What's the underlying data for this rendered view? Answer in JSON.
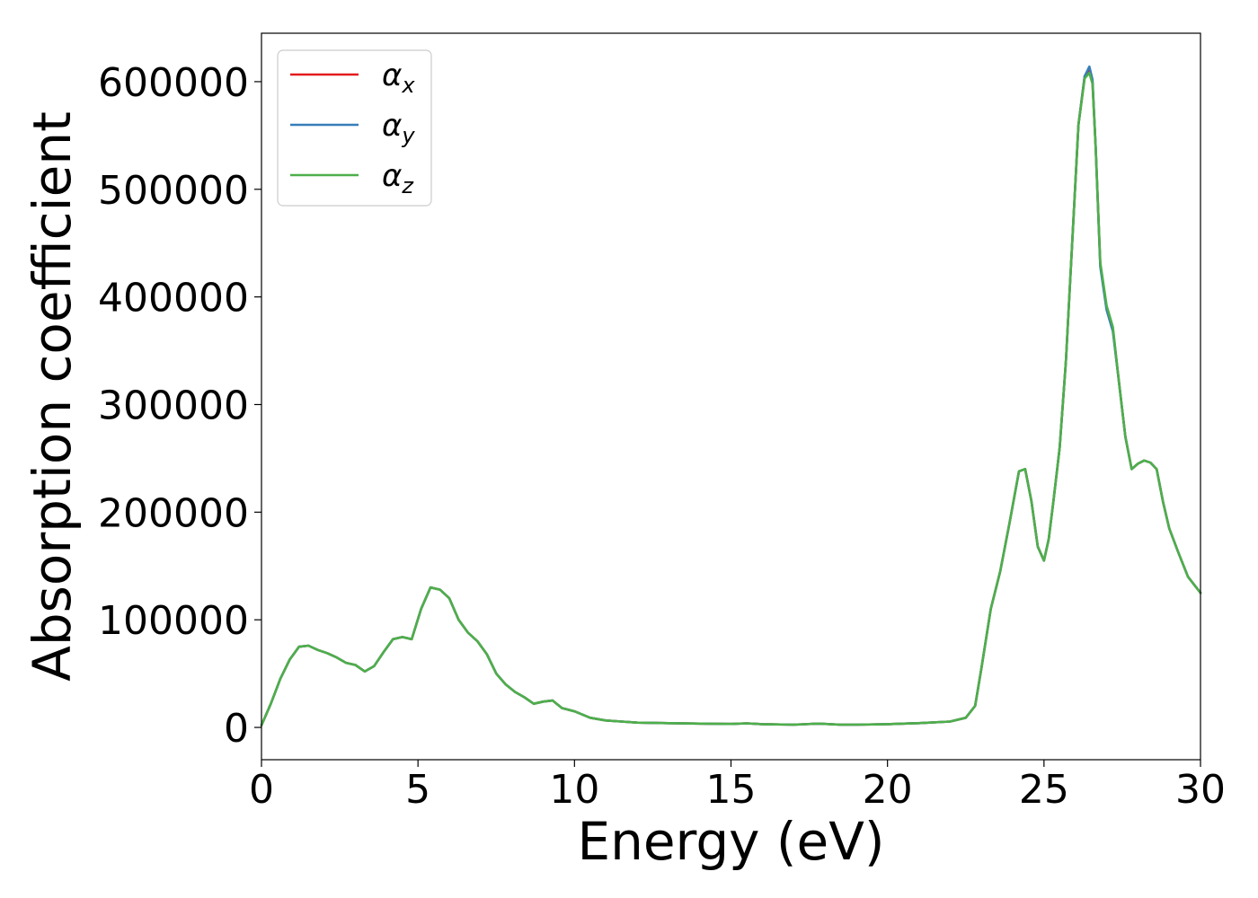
{
  "chart_data": {
    "type": "line",
    "xlabel": "Energy (eV)",
    "ylabel": "Absorption coefficient",
    "xlim": [
      0,
      30
    ],
    "ylim": [
      -30000,
      645000
    ],
    "xticks": [
      "0",
      "5",
      "10",
      "15",
      "20",
      "25",
      "30"
    ],
    "yticks": [
      "0",
      "100000",
      "200000",
      "300000",
      "400000",
      "500000",
      "600000"
    ],
    "grid": false,
    "legend_position": "top-left",
    "colors": {
      "alpha_x": "#e41a1c",
      "alpha_y": "#377eb8",
      "alpha_z": "#4daf4a"
    },
    "x": [
      0.0,
      0.3,
      0.6,
      0.9,
      1.2,
      1.5,
      1.8,
      2.1,
      2.4,
      2.7,
      3.0,
      3.3,
      3.6,
      3.9,
      4.2,
      4.5,
      4.8,
      5.1,
      5.4,
      5.7,
      6.0,
      6.3,
      6.6,
      6.9,
      7.2,
      7.5,
      7.8,
      8.1,
      8.4,
      8.7,
      9.0,
      9.3,
      9.6,
      10.0,
      10.5,
      11.0,
      11.5,
      12.0,
      13.0,
      14.0,
      15.0,
      15.5,
      16.0,
      17.0,
      17.8,
      18.5,
      19.0,
      20.0,
      21.0,
      22.0,
      22.5,
      22.8,
      23.0,
      23.3,
      23.6,
      23.9,
      24.2,
      24.4,
      24.6,
      24.8,
      25.0,
      25.15,
      25.3,
      25.5,
      25.7,
      25.9,
      26.1,
      26.3,
      26.45,
      26.55,
      26.65,
      26.8,
      27.0,
      27.2,
      27.4,
      27.6,
      27.8,
      28.0,
      28.2,
      28.4,
      28.6,
      28.8,
      29.0,
      29.3,
      29.6,
      30.0
    ],
    "series": [
      {
        "name": "α_x",
        "values": [
          2000,
          22000,
          45000,
          63000,
          75000,
          76000,
          72000,
          69000,
          65000,
          60000,
          58000,
          52000,
          57000,
          70000,
          82000,
          84000,
          82000,
          110000,
          130000,
          128000,
          120000,
          100000,
          88000,
          80000,
          68000,
          50000,
          40000,
          33000,
          28000,
          22000,
          24000,
          25000,
          18000,
          15000,
          9000,
          6500,
          5500,
          4500,
          4000,
          3500,
          3200,
          3800,
          3000,
          2500,
          3500,
          2500,
          2500,
          3000,
          4000,
          5500,
          9000,
          20000,
          55000,
          110000,
          145000,
          190000,
          238000,
          240000,
          210000,
          168000,
          155000,
          175000,
          210000,
          260000,
          340000,
          450000,
          560000,
          605000,
          612000,
          600000,
          540000,
          430000,
          390000,
          370000,
          320000,
          270000,
          240000,
          245000,
          248000,
          246000,
          240000,
          210000,
          185000,
          162000,
          140000,
          125000
        ]
      },
      {
        "name": "α_y",
        "values": [
          2000,
          22000,
          45000,
          63000,
          75000,
          76000,
          72000,
          69000,
          65000,
          60000,
          58000,
          52000,
          57000,
          70000,
          82000,
          84000,
          82000,
          110000,
          130000,
          128000,
          120000,
          100000,
          88000,
          80000,
          68000,
          50000,
          40000,
          33000,
          28000,
          22000,
          24000,
          25000,
          18000,
          15000,
          9000,
          6500,
          5500,
          4500,
          4000,
          3500,
          3200,
          3800,
          3000,
          2500,
          3500,
          2500,
          2500,
          3000,
          4000,
          5500,
          9000,
          20000,
          55000,
          110000,
          145000,
          190000,
          238000,
          240000,
          210000,
          168000,
          155000,
          175000,
          210000,
          260000,
          340000,
          450000,
          560000,
          605000,
          614000,
          602000,
          540000,
          428000,
          388000,
          368000,
          320000,
          270000,
          240000,
          245000,
          248000,
          246000,
          240000,
          210000,
          185000,
          162000,
          140000,
          125000
        ]
      },
      {
        "name": "α_z",
        "values": [
          2000,
          22000,
          45000,
          63000,
          75000,
          76000,
          72000,
          69000,
          65000,
          60000,
          58000,
          52000,
          57000,
          70000,
          82000,
          84000,
          82000,
          110000,
          130000,
          128000,
          120000,
          100000,
          88000,
          80000,
          68000,
          50000,
          40000,
          33000,
          28000,
          22000,
          24000,
          25000,
          18000,
          15000,
          9000,
          6500,
          5500,
          4500,
          4000,
          3500,
          3200,
          3800,
          3000,
          2500,
          3500,
          2500,
          2500,
          3000,
          4000,
          5500,
          9000,
          20000,
          55000,
          110000,
          145000,
          190000,
          238000,
          240000,
          210000,
          168000,
          155000,
          175000,
          210000,
          260000,
          340000,
          450000,
          560000,
          603000,
          608000,
          598000,
          540000,
          432000,
          392000,
          372000,
          320000,
          270000,
          240000,
          245000,
          248000,
          246000,
          240000,
          210000,
          185000,
          162000,
          140000,
          125000
        ]
      }
    ],
    "legend": [
      {
        "symbol": "α",
        "sub": "x"
      },
      {
        "symbol": "α",
        "sub": "y"
      },
      {
        "symbol": "α",
        "sub": "z"
      }
    ]
  }
}
